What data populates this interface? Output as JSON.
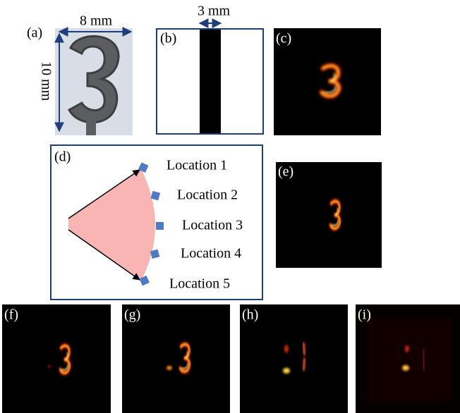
{
  "panels": {
    "a": "(a)",
    "b": "(b)",
    "c": "(c)",
    "d": "(d)",
    "e": "(e)",
    "f": "(f)",
    "g": "(g)",
    "h": "(h)",
    "i": "(i)"
  },
  "dimensions": {
    "width": "8 mm",
    "height": "10 mm",
    "bar_width": "3 mm"
  },
  "locations": [
    "Location 1",
    "Location 2",
    "Location 3",
    "Location 4",
    "Location 5"
  ]
}
